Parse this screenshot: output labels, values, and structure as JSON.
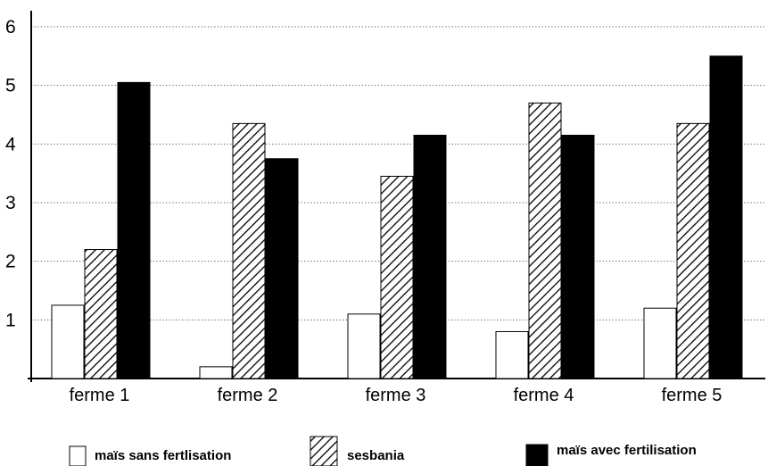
{
  "chart_data": {
    "type": "bar",
    "categories": [
      "ferme 1",
      "ferme 2",
      "ferme 3",
      "ferme 4",
      "ferme 5"
    ],
    "series": [
      {
        "name": "maïs sans fertlisation",
        "values": [
          1.25,
          0.2,
          1.1,
          0.8,
          1.2
        ],
        "style": "white",
        "color": "#ffffff"
      },
      {
        "name": "sesbania",
        "values": [
          2.2,
          4.35,
          3.45,
          4.7,
          4.35
        ],
        "style": "hatched",
        "color": "#000000"
      },
      {
        "name": "maïs avec fertilisation",
        "values": [
          5.05,
          3.75,
          4.15,
          4.15,
          5.5
        ],
        "style": "solid",
        "color": "#000000"
      }
    ],
    "y_ticks": [
      "1",
      "2",
      "3",
      "4",
      "5",
      "6"
    ],
    "ylim": [
      0,
      6
    ],
    "grid": true,
    "legend_position": "bottom"
  }
}
